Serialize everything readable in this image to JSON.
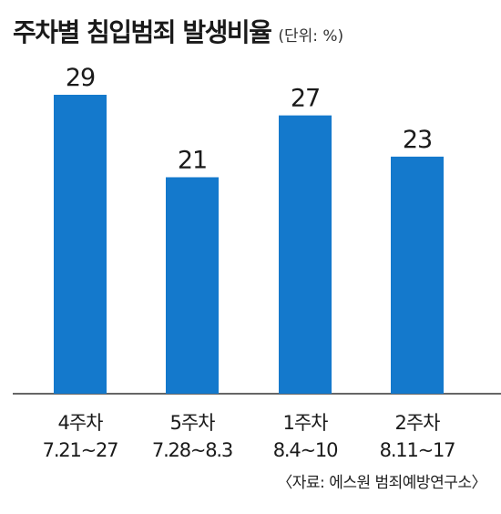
{
  "header": {
    "title": "주차별 침입범죄 발생비율",
    "unit": "(단위: %)"
  },
  "source": "〈자료: 에스원 범죄예방연구소〉",
  "colors": {
    "bar": "#1479cc",
    "axis": "#333333",
    "text": "#1a1a1a"
  },
  "chart_data": {
    "type": "bar",
    "title": "주차별 침입범죄 발생비율",
    "categories": [
      {
        "label": "4주차",
        "range": "7.21~27"
      },
      {
        "label": "5주차",
        "range": "7.28~8.3"
      },
      {
        "label": "1주차",
        "range": "8.4~10"
      },
      {
        "label": "2주차",
        "range": "8.11~17"
      }
    ],
    "values": [
      29,
      21,
      27,
      23
    ],
    "ylim": [
      0,
      30
    ],
    "grid": false,
    "legend": "none",
    "data_labels": true
  }
}
